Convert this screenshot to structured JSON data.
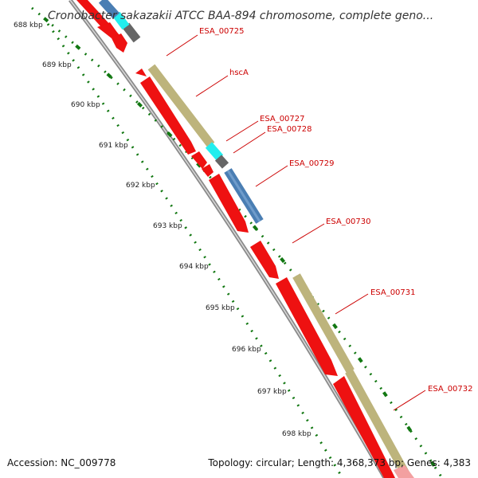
{
  "title": "Cronobacter sakazakii ATCC BAA-894 chromosome, complete geno...",
  "tick_labels": [
    "688 kbp",
    "689 kbp",
    "690 kbp",
    "691 kbp",
    "692 kbp",
    "693 kbp",
    "694 kbp",
    "695 kbp",
    "696 kbp",
    "697 kbp",
    "698 kbp"
  ],
  "gene_labels": [
    "ESA_00725",
    "hscA",
    "ESA_00727",
    "ESA_00728",
    "ESA_00729",
    "ESA_00730",
    "ESA_00731",
    "ESA_00732"
  ],
  "footer": {
    "accession": "Accession: NC_009778",
    "summary": "Topology: circular; Length: 4,368,373 bp; Genes: 4,383"
  },
  "colors": {
    "cds": "#ee1111",
    "gene": "#bdb47c",
    "trna": "#22eeee",
    "other": "#666666",
    "blue_feature": "#4a7eb3",
    "backbone": "#8a8a8a",
    "tick": "#117711",
    "label": "#cc0000"
  }
}
